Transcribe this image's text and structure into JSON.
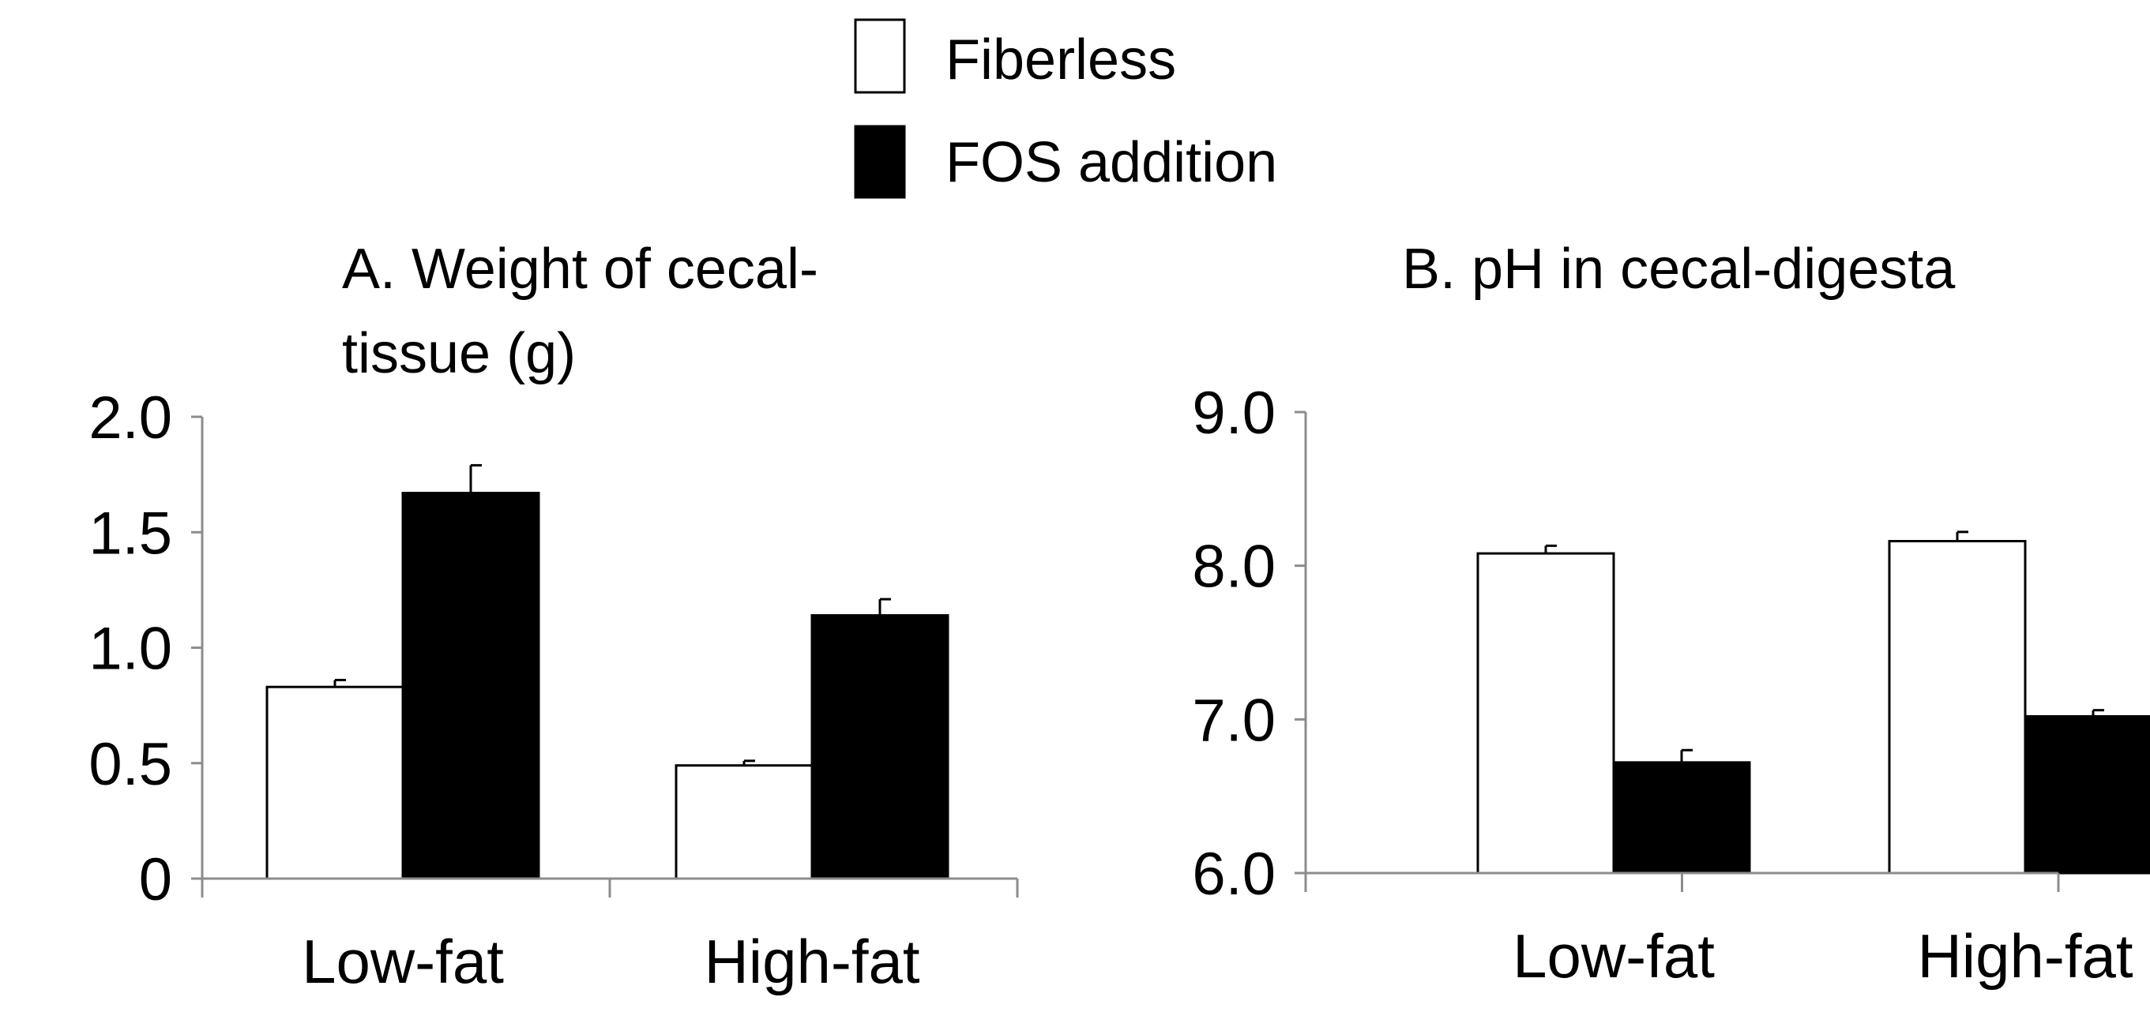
{
  "legend": [
    {
      "name": "Fiberless",
      "fill": "#ffffff",
      "stroke": "#000000"
    },
    {
      "name": "FOS addition",
      "fill": "#000000",
      "stroke": "#000000"
    }
  ],
  "chart_data": [
    {
      "type": "bar",
      "title": "A. Weight of cecal-tissue (g)",
      "title_lines": [
        "A. Weight of cecal-",
        "tissue (g)"
      ],
      "categories": [
        "Low-fat",
        "High-fat"
      ],
      "series": [
        {
          "name": "Fiberless",
          "values": [
            0.83,
            0.49
          ],
          "errors": [
            0.03,
            0.02
          ]
        },
        {
          "name": "FOS addition",
          "values": [
            1.67,
            1.14
          ],
          "errors": [
            0.12,
            0.07
          ]
        }
      ],
      "ylim": [
        0,
        2.0
      ],
      "yticks": [
        0,
        0.5,
        1.0,
        1.5,
        2.0
      ],
      "ytick_labels": [
        "0",
        "0.5",
        "1.0",
        "1.5",
        "2.0"
      ],
      "xlabel": "",
      "ylabel": "",
      "grid": false
    },
    {
      "type": "bar",
      "title": "B. pH in cecal-digesta",
      "title_lines": [
        "B. pH in cecal-digesta"
      ],
      "categories": [
        "Low-fat",
        "High-fat"
      ],
      "series": [
        {
          "name": "Fiberless",
          "values": [
            8.08,
            8.16
          ],
          "errors": [
            0.05,
            0.06
          ]
        },
        {
          "name": "FOS addition",
          "values": [
            6.72,
            7.02
          ],
          "errors": [
            0.08,
            0.04
          ]
        }
      ],
      "ylim": [
        6.0,
        9.0
      ],
      "yticks": [
        6.0,
        7.0,
        8.0,
        9.0
      ],
      "ytick_labels": [
        "6.0",
        "7.0",
        "8.0",
        "9.0"
      ],
      "xlabel": "",
      "ylabel": "",
      "grid": false
    }
  ]
}
